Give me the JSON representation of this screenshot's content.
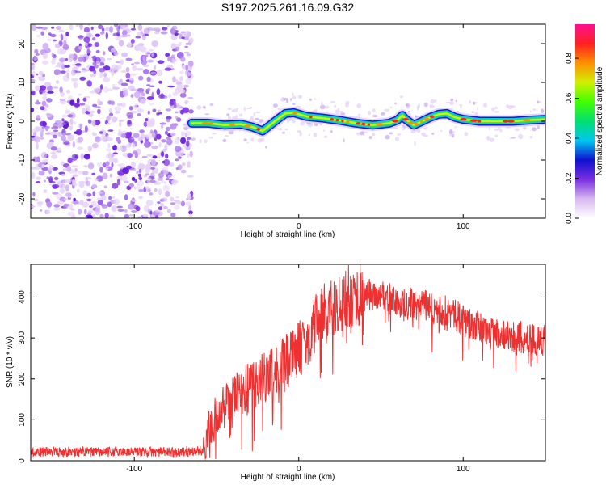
{
  "title": "S197.2025.261.16.09.G32",
  "chart_data": [
    {
      "type": "heatmap",
      "name": "spectrogram",
      "xlabel": "Height of straight line (km)",
      "ylabel": "Frequency (Hz)",
      "xlim": [
        -163,
        150
      ],
      "ylim": [
        -25,
        25
      ],
      "x_ticks": [
        -100,
        0,
        100
      ],
      "y_ticks": [
        -20,
        -10,
        0,
        10,
        20
      ],
      "x_tick_labels": [
        "-100",
        "0",
        "100"
      ],
      "y_tick_labels": [
        "-20",
        "-10",
        "0",
        "10",
        "20"
      ],
      "noise_region_end_km": -65,
      "ridge": {
        "x": [
          -65,
          -55,
          -45,
          -35,
          -28,
          -22,
          -18,
          -12,
          -8,
          -3,
          5,
          15,
          25,
          35,
          45,
          55,
          60,
          63,
          65,
          70,
          75,
          80,
          85,
          90,
          95,
          100,
          110,
          120,
          130,
          140,
          150
        ],
        "y": [
          -0.5,
          -0.5,
          -1.0,
          -0.8,
          -1.5,
          -2.5,
          -1.2,
          0.8,
          2.0,
          2.2,
          1.2,
          0.8,
          0.2,
          -0.5,
          -1.0,
          -0.5,
          0.3,
          1.5,
          0.5,
          -1.0,
          0.0,
          1.0,
          1.8,
          2.0,
          1.0,
          0.5,
          0.0,
          0.0,
          0.0,
          0.3,
          0.5
        ]
      },
      "colorbar": {
        "label": "Normalized spectral amplitude",
        "range": [
          0,
          0.97
        ],
        "ticks": [
          0.0,
          0.2,
          0.4,
          0.6,
          0.8
        ],
        "tick_labels": [
          "0.0",
          "0.2",
          "0.4",
          "0.6",
          "0.8"
        ],
        "colors": [
          "#ffffff",
          "#d8b8f0",
          "#7a2ee0",
          "#1010d0",
          "#00c8f0",
          "#00e070",
          "#40ff00",
          "#d0f000",
          "#ff9000",
          "#ff2020",
          "#ff1090"
        ]
      }
    },
    {
      "type": "line",
      "name": "snr",
      "xlabel": "Height of straight line (km)",
      "ylabel": "SNR (10 * v/v)",
      "xlim": [
        -163,
        150
      ],
      "ylim": [
        0,
        480
      ],
      "x_ticks": [
        -100,
        0,
        100
      ],
      "y_ticks": [
        0,
        100,
        200,
        300,
        400
      ],
      "x_tick_labels": [
        "-100",
        "0",
        "100"
      ],
      "y_tick_labels": [
        "0",
        "100",
        "200",
        "300",
        "400"
      ],
      "color": "#ee3030",
      "series": [
        {
          "name": "SNR envelope",
          "x": [
            -163,
            -140,
            -120,
            -100,
            -80,
            -65,
            -58,
            -55,
            -50,
            -45,
            -40,
            -35,
            -30,
            -25,
            -20,
            -15,
            -10,
            -5,
            0,
            5,
            10,
            15,
            20,
            25,
            30,
            35,
            40,
            45,
            50,
            55,
            60,
            65,
            70,
            75,
            80,
            85,
            90,
            95,
            100,
            105,
            110,
            115,
            120,
            130,
            140,
            150
          ],
          "y": [
            22,
            22,
            21,
            22,
            21,
            22,
            25,
            70,
            110,
            130,
            150,
            165,
            180,
            195,
            210,
            225,
            235,
            250,
            275,
            300,
            330,
            355,
            375,
            390,
            400,
            405,
            405,
            405,
            400,
            395,
            390,
            385,
            382,
            380,
            375,
            370,
            365,
            355,
            345,
            335,
            325,
            318,
            312,
            305,
            300,
            295
          ]
        }
      ]
    }
  ]
}
